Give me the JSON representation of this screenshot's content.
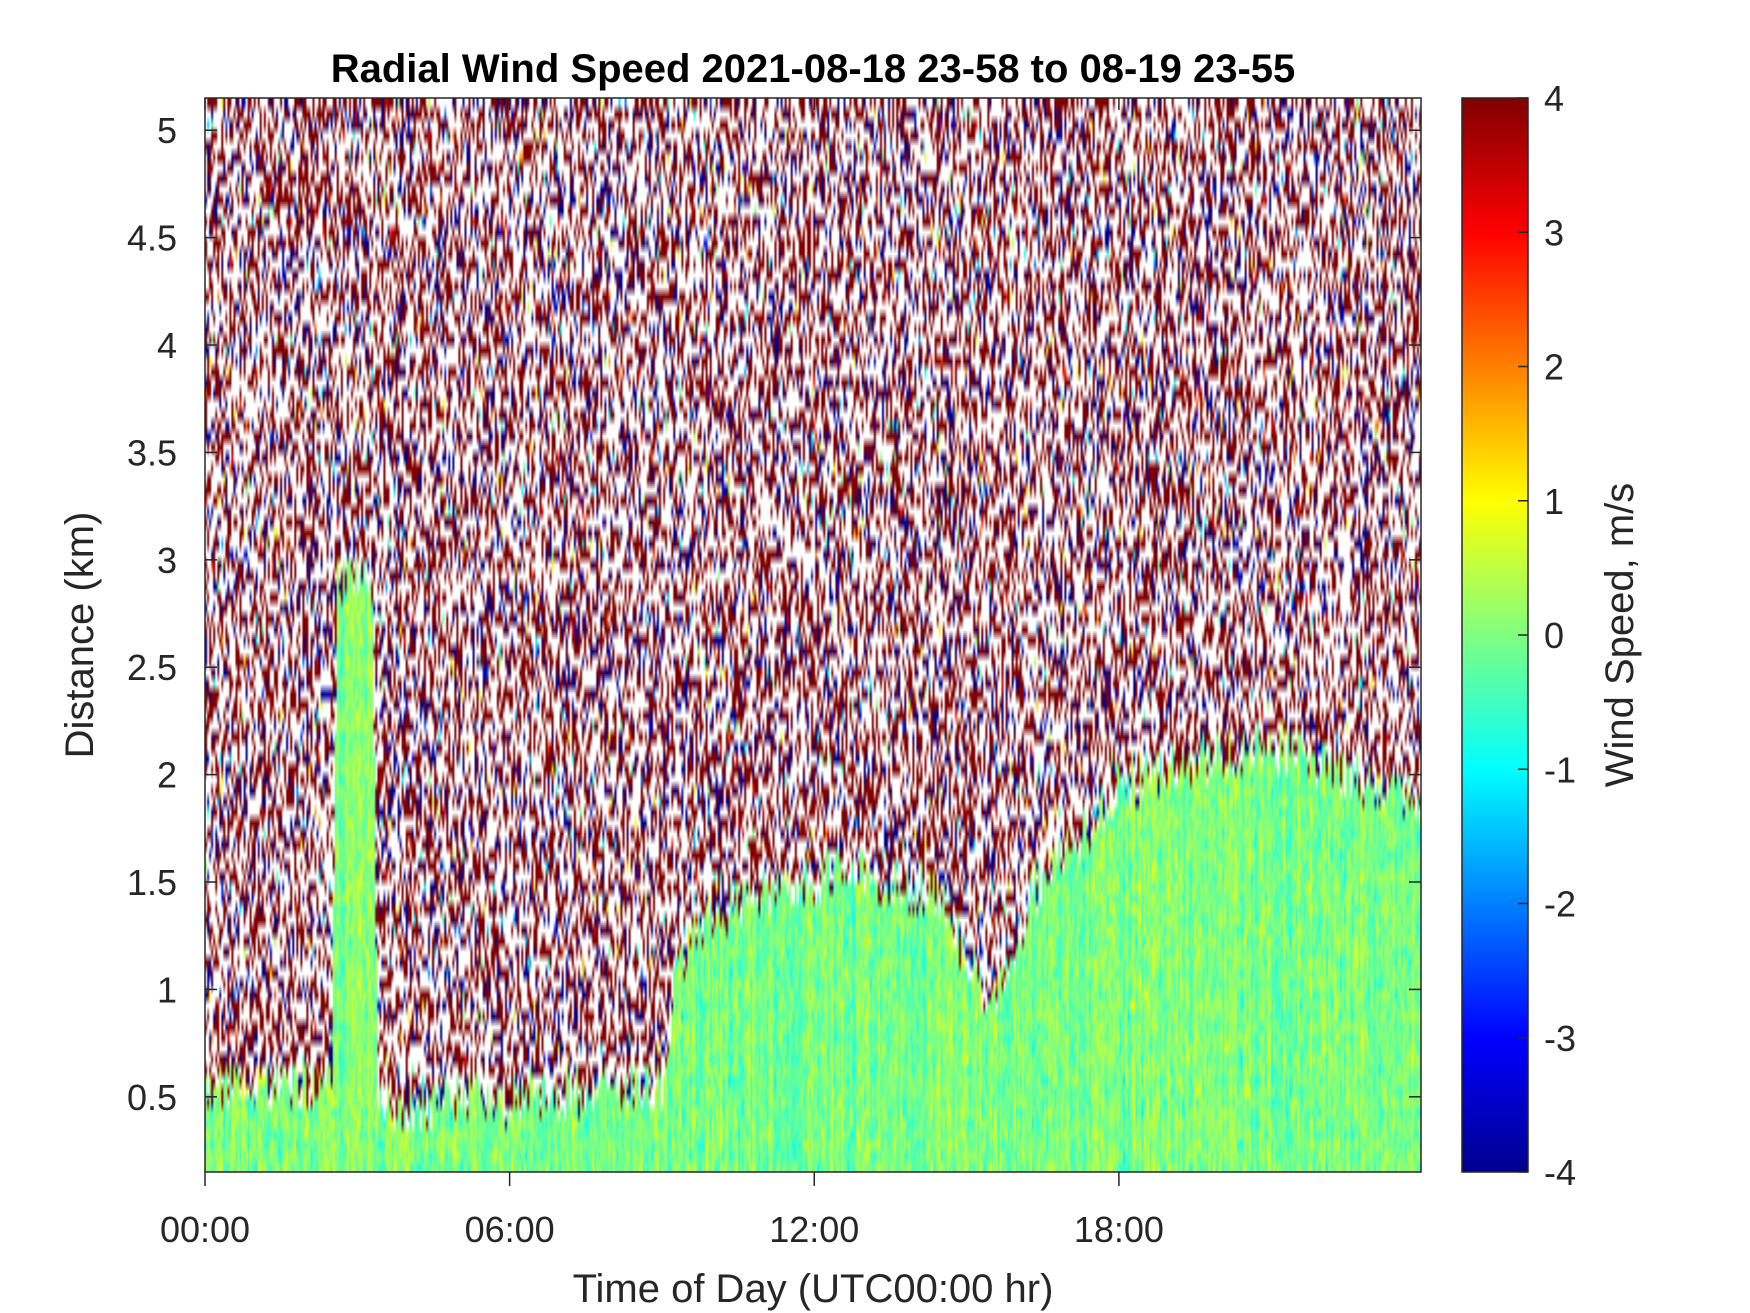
{
  "chart_data": {
    "type": "heatmap",
    "title": "Radial Wind Speed 2021-08-18 23-58 to 08-19 23-55",
    "xlabel": "Time of Day (UTC00:00 hr)",
    "ylabel": "Distance (km)",
    "x_ticks": [
      "00:00",
      "06:00",
      "12:00",
      "18:00"
    ],
    "x_tick_hours": [
      0,
      6,
      12,
      18
    ],
    "xlim_hours": [
      0,
      23.95
    ],
    "y_ticks": [
      "0.5",
      "1",
      "1.5",
      "2",
      "2.5",
      "3",
      "3.5",
      "4",
      "4.5",
      "5"
    ],
    "y_tick_values": [
      0.5,
      1,
      1.5,
      2,
      2.5,
      3,
      3.5,
      4,
      4.5,
      5
    ],
    "ylim_km": [
      0.15,
      5.15
    ],
    "colorbar": {
      "label": "Wind Speed, m/s",
      "colormap": "jet",
      "ticks": [
        "4",
        "3",
        "2",
        "1",
        "0",
        "-1",
        "-2",
        "-3",
        "-4"
      ],
      "tick_values": [
        4,
        3,
        2,
        1,
        0,
        -1,
        -2,
        -3,
        -4
      ],
      "range": [
        -4,
        4
      ]
    },
    "valid_data_top_km": [
      {
        "hour": 0.0,
        "km": 0.55
      },
      {
        "hour": 2.5,
        "km": 0.55
      },
      {
        "hour": 2.6,
        "km": 2.9
      },
      {
        "hour": 3.3,
        "km": 2.9
      },
      {
        "hour": 3.4,
        "km": 0.45
      },
      {
        "hour": 9.0,
        "km": 0.55
      },
      {
        "hour": 9.3,
        "km": 1.15
      },
      {
        "hour": 10.0,
        "km": 1.35
      },
      {
        "hour": 11.0,
        "km": 1.45
      },
      {
        "hour": 12.5,
        "km": 1.55
      },
      {
        "hour": 14.5,
        "km": 1.45
      },
      {
        "hour": 15.5,
        "km": 0.85
      },
      {
        "hour": 16.3,
        "km": 1.45
      },
      {
        "hour": 17.0,
        "km": 1.65
      },
      {
        "hour": 18.0,
        "km": 1.95
      },
      {
        "hour": 21.0,
        "km": 2.15
      },
      {
        "hour": 23.95,
        "km": 1.85
      }
    ],
    "noise_region": "above valid data, mostly saturated -4 and 4 m/s with gaps",
    "valid_region_typical_value_ms": 0
  }
}
